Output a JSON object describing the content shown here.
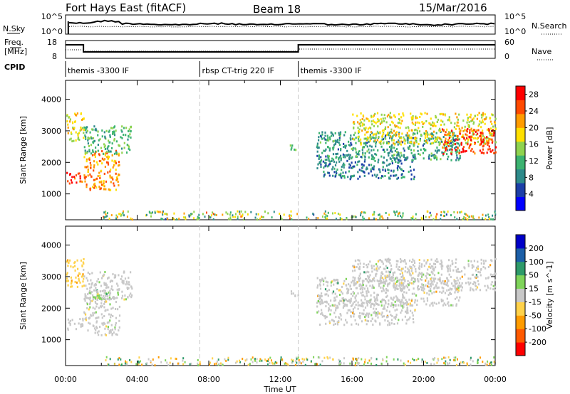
{
  "header": {
    "station": "Fort Hays East (fitACF)",
    "beam": "Beam 18",
    "date": "15/Mar/2016"
  },
  "upper_strips": {
    "nsky_label": "N.Sky",
    "nsky_ticks": [
      "10^5",
      "10^0"
    ],
    "nsearch_label": "N.Search",
    "nsearch_ticks": [
      "10^5",
      "10^0"
    ],
    "freq_label": "Freq.",
    "freq_unit": "[MHz]",
    "freq_ticks": [
      "18",
      "8"
    ],
    "nave_label": "Nave",
    "nave_ticks": [
      "60",
      "0"
    ],
    "cpid_label": "CPID",
    "cpid_segments": [
      {
        "label": "themis -3300 IF",
        "start_hr": 0,
        "end_hr": 7.5
      },
      {
        "label": "rbsp CT-trig 220 IF",
        "start_hr": 7.5,
        "end_hr": 13
      },
      {
        "label": "themis -3300 IF",
        "start_hr": 13,
        "end_hr": 24
      }
    ],
    "freq_step_hr": [
      1.0,
      13.0
    ]
  },
  "chart_data": [
    {
      "type": "heatmap",
      "name": "power-panel",
      "ylabel": "Slant Range [km]",
      "xlabel": "",
      "ylim": [
        180,
        4600
      ],
      "xlim_hours": [
        0,
        24
      ],
      "yticks": [
        1000,
        2000,
        3000,
        4000
      ],
      "colorbar": {
        "label": "Power [dB]",
        "ticks": [
          4,
          8,
          12,
          16,
          20,
          24,
          28
        ],
        "range": [
          0,
          30
        ],
        "colors": [
          "#0000ff",
          "#1c3fa8",
          "#2e8b8b",
          "#3cb371",
          "#8fd34f",
          "#ffe000",
          "#ff9c00",
          "#ff4a00",
          "#ff0000"
        ]
      },
      "echo_bands": [
        {
          "hr": [
            0.0,
            1.0
          ],
          "range_km": [
            1350,
            1700
          ],
          "db": 26
        },
        {
          "hr": [
            0.0,
            1.0
          ],
          "range_km": [
            2700,
            3600
          ],
          "db": 18
        },
        {
          "hr": [
            1.0,
            3.0
          ],
          "range_km": [
            1150,
            2400
          ],
          "db": 22
        },
        {
          "hr": [
            1.0,
            3.7
          ],
          "range_km": [
            2300,
            3200
          ],
          "db": 12
        },
        {
          "hr": [
            12.5,
            13.0
          ],
          "range_km": [
            2400,
            2600
          ],
          "db": 12
        },
        {
          "hr": [
            14.0,
            19.5
          ],
          "range_km": [
            1500,
            2300
          ],
          "db": 8
        },
        {
          "hr": [
            14.0,
            22.0
          ],
          "range_km": [
            2100,
            3000
          ],
          "db": 10
        },
        {
          "hr": [
            16.0,
            24.0
          ],
          "range_km": [
            2600,
            3600
          ],
          "db": 18
        },
        {
          "hr": [
            21.0,
            24.0
          ],
          "range_km": [
            2300,
            3100
          ],
          "db": 26
        }
      ]
    },
    {
      "type": "heatmap",
      "name": "velocity-panel",
      "ylabel": "Slant Range [km]",
      "xlabel": "Time UT",
      "ylim": [
        180,
        4600
      ],
      "xlim_hours": [
        0,
        24
      ],
      "yticks": [
        1000,
        2000,
        3000,
        4000
      ],
      "xtick_labels": [
        "00:00",
        "04:00",
        "08:00",
        "12:00",
        "16:00",
        "20:00",
        "00:00"
      ],
      "colorbar": {
        "label": "Velocity [m s^-1]",
        "ticks": [
          -200,
          -100,
          -50,
          -15,
          15,
          50,
          100,
          200
        ],
        "colors": [
          "#ff0000",
          "#ff5a00",
          "#ff9c00",
          "#ffd24a",
          "#c8c8c8",
          "#7fd45a",
          "#2e9a6a",
          "#1c5fa8",
          "#0000c8"
        ]
      },
      "echo_bands": [
        {
          "hr": [
            0.0,
            1.0
          ],
          "range_km": [
            1350,
            1700
          ],
          "ms": 0
        },
        {
          "hr": [
            0.0,
            1.0
          ],
          "range_km": [
            2700,
            3600
          ],
          "ms": -30
        },
        {
          "hr": [
            1.0,
            3.0
          ],
          "range_km": [
            1150,
            2400
          ],
          "ms": 0
        },
        {
          "hr": [
            1.5,
            2.5
          ],
          "range_km": [
            2300,
            2600
          ],
          "ms": 40
        },
        {
          "hr": [
            1.0,
            3.7
          ],
          "range_km": [
            2300,
            3200
          ],
          "ms": 0
        },
        {
          "hr": [
            12.5,
            13.0
          ],
          "range_km": [
            2400,
            2600
          ],
          "ms": 0
        },
        {
          "hr": [
            14.0,
            19.5
          ],
          "range_km": [
            1500,
            2300
          ],
          "ms": 0
        },
        {
          "hr": [
            14.0,
            22.0
          ],
          "range_km": [
            2100,
            3000
          ],
          "ms": 0
        },
        {
          "hr": [
            16.0,
            24.0
          ],
          "range_km": [
            2600,
            3600
          ],
          "ms": 0
        }
      ]
    }
  ]
}
